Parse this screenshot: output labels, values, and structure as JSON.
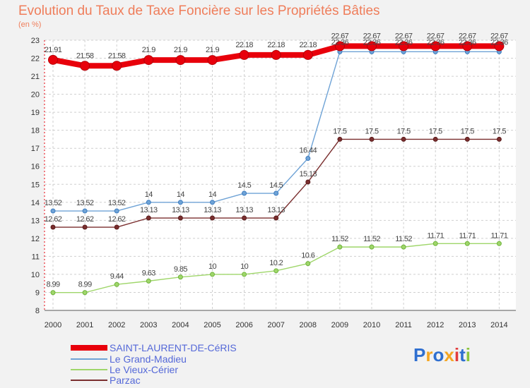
{
  "chart_data": {
    "type": "line",
    "title": "Evolution du Taux de Taxe Foncière sur les Propriétés Bâties",
    "subtitle": "(en %)",
    "xlabel": "",
    "ylabel": "(en %)",
    "x": [
      "2000",
      "2001",
      "2002",
      "2003",
      "2004",
      "2005",
      "2006",
      "2007",
      "2008",
      "2009",
      "2010",
      "2011",
      "2012",
      "2013",
      "2014"
    ],
    "ylim": [
      8,
      23
    ],
    "yticks": [
      "8",
      "9",
      "10",
      "11",
      "12",
      "13",
      "14",
      "15",
      "16",
      "17",
      "18",
      "19",
      "20",
      "21",
      "22",
      "23"
    ],
    "legend_position": "bottom-left",
    "series": [
      {
        "name": "SAINT-LAURENT-DE-CéRIS",
        "color": "#e8000b",
        "values": [
          21.91,
          21.58,
          21.58,
          21.9,
          21.9,
          21.9,
          22.18,
          22.18,
          22.18,
          22.67,
          22.67,
          22.67,
          22.67,
          22.67,
          22.67
        ],
        "labels": [
          "21.91",
          "21.58",
          "21.58",
          "21.9",
          "21.9",
          "21.9",
          "22.18",
          "22.18",
          "22.18",
          "22.67",
          "22.67",
          "22.67",
          "22.67",
          "22.67",
          "22.67"
        ]
      },
      {
        "name": "Le Grand-Madieu",
        "color": "#6fa3d6",
        "values": [
          13.52,
          13.52,
          13.52,
          14,
          14,
          14,
          14.5,
          14.5,
          16.44,
          22.36,
          22.36,
          22.36,
          22.36,
          22.36,
          22.36
        ],
        "labels": [
          "13.52",
          "13.52",
          "13.52",
          "14",
          "14",
          "14",
          "14.5",
          "14.5",
          "16.44",
          "22.36",
          "22.36",
          "22.36",
          "22.36",
          "22.36",
          "22.36"
        ]
      },
      {
        "name": "Le Vieux-Cérier",
        "color": "#9fd66a",
        "values": [
          8.99,
          8.99,
          9.44,
          9.63,
          9.85,
          10,
          10,
          10.2,
          10.6,
          11.52,
          11.52,
          11.52,
          11.71,
          11.71,
          11.71
        ],
        "labels": [
          "8.99",
          "8.99",
          "9.44",
          "9.63",
          "9.85",
          "10",
          "10",
          "10.2",
          "10.6",
          "11.52",
          "11.52",
          "11.52",
          "11.71",
          "11.71",
          "11.71"
        ]
      },
      {
        "name": "Parzac",
        "color": "#7a2e2e",
        "values": [
          12.62,
          12.62,
          12.62,
          13.13,
          13.13,
          13.13,
          13.13,
          13.13,
          15.13,
          17.5,
          17.5,
          17.5,
          17.5,
          17.5,
          17.5
        ],
        "labels": [
          "12.62",
          "12.62",
          "12.62",
          "13.13",
          "13.13",
          "13.13",
          "13.13",
          "13.13",
          "15.13",
          "17.5",
          "17.5",
          "17.5",
          "17.5",
          "17.5",
          "17.5"
        ]
      }
    ]
  },
  "brand": {
    "letters": [
      "P",
      "r",
      "o",
      "x",
      "i",
      "t",
      "i"
    ],
    "colors": [
      "#2f6fd0",
      "#f5a623",
      "#2f6fd0",
      "#f5a623",
      "#e23c3c",
      "#2f6fd0",
      "#8cc43d"
    ]
  }
}
